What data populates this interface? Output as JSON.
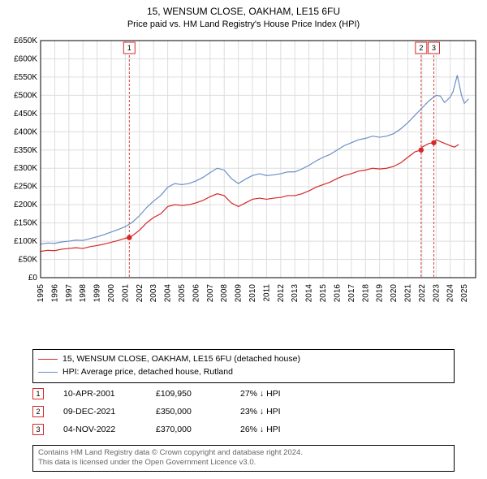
{
  "title": {
    "line1": "15, WENSUM CLOSE, OAKHAM, LE15 6FU",
    "line2": "Price paid vs. HM Land Registry's House Price Index (HPI)"
  },
  "chart": {
    "type": "line",
    "background_color": "#ffffff",
    "grid_color": "#dddddd",
    "axis_color": "#000000",
    "x_years": [
      1995,
      1996,
      1997,
      1998,
      1999,
      2000,
      2001,
      2002,
      2003,
      2004,
      2005,
      2006,
      2007,
      2008,
      2009,
      2010,
      2011,
      2012,
      2013,
      2014,
      2015,
      2016,
      2017,
      2018,
      2019,
      2020,
      2021,
      2022,
      2023,
      2024,
      2025
    ],
    "xlim": [
      1995,
      2025.8
    ],
    "ylim": [
      0,
      650000
    ],
    "ytick_step": 50000,
    "ytick_labels": [
      "£0",
      "£50K",
      "£100K",
      "£150K",
      "£200K",
      "£250K",
      "£300K",
      "£350K",
      "£400K",
      "£450K",
      "£500K",
      "£550K",
      "£600K",
      "£650K"
    ],
    "series": [
      {
        "name": "property",
        "color": "#d62728",
        "width": 1.2,
        "points": [
          [
            1995,
            72000
          ],
          [
            1995.5,
            75000
          ],
          [
            1996,
            74000
          ],
          [
            1996.5,
            78000
          ],
          [
            1997,
            80000
          ],
          [
            1997.5,
            82000
          ],
          [
            1998,
            80000
          ],
          [
            1998.5,
            85000
          ],
          [
            1999,
            88000
          ],
          [
            1999.5,
            92000
          ],
          [
            2000,
            97000
          ],
          [
            2000.5,
            102000
          ],
          [
            2001,
            108000
          ],
          [
            2001.28,
            109950
          ],
          [
            2001.5,
            115000
          ],
          [
            2002,
            130000
          ],
          [
            2002.5,
            150000
          ],
          [
            2003,
            165000
          ],
          [
            2003.5,
            175000
          ],
          [
            2004,
            195000
          ],
          [
            2004.5,
            200000
          ],
          [
            2005,
            198000
          ],
          [
            2005.5,
            200000
          ],
          [
            2006,
            205000
          ],
          [
            2006.5,
            212000
          ],
          [
            2007,
            222000
          ],
          [
            2007.5,
            230000
          ],
          [
            2008,
            225000
          ],
          [
            2008.5,
            205000
          ],
          [
            2009,
            195000
          ],
          [
            2009.5,
            205000
          ],
          [
            2010,
            215000
          ],
          [
            2010.5,
            218000
          ],
          [
            2011,
            215000
          ],
          [
            2011.5,
            218000
          ],
          [
            2012,
            220000
          ],
          [
            2012.5,
            225000
          ],
          [
            2013,
            225000
          ],
          [
            2013.5,
            230000
          ],
          [
            2014,
            238000
          ],
          [
            2014.5,
            248000
          ],
          [
            2015,
            255000
          ],
          [
            2015.5,
            262000
          ],
          [
            2016,
            272000
          ],
          [
            2016.5,
            280000
          ],
          [
            2017,
            285000
          ],
          [
            2017.5,
            292000
          ],
          [
            2018,
            295000
          ],
          [
            2018.5,
            300000
          ],
          [
            2019,
            298000
          ],
          [
            2019.5,
            300000
          ],
          [
            2020,
            305000
          ],
          [
            2020.5,
            315000
          ],
          [
            2021,
            330000
          ],
          [
            2021.5,
            345000
          ],
          [
            2021.94,
            350000
          ],
          [
            2022,
            358000
          ],
          [
            2022.5,
            368000
          ],
          [
            2022.84,
            370000
          ],
          [
            2023,
            378000
          ],
          [
            2023.5,
            370000
          ],
          [
            2024,
            362000
          ],
          [
            2024.3,
            358000
          ],
          [
            2024.6,
            365000
          ]
        ]
      },
      {
        "name": "hpi",
        "color": "#6b8ec7",
        "width": 1.2,
        "points": [
          [
            1995,
            92000
          ],
          [
            1995.5,
            95000
          ],
          [
            1996,
            94000
          ],
          [
            1996.5,
            98000
          ],
          [
            1997,
            100000
          ],
          [
            1997.5,
            103000
          ],
          [
            1998,
            102000
          ],
          [
            1998.5,
            107000
          ],
          [
            1999,
            112000
          ],
          [
            1999.5,
            118000
          ],
          [
            2000,
            125000
          ],
          [
            2000.5,
            132000
          ],
          [
            2001,
            140000
          ],
          [
            2001.5,
            152000
          ],
          [
            2002,
            170000
          ],
          [
            2002.5,
            192000
          ],
          [
            2003,
            210000
          ],
          [
            2003.5,
            225000
          ],
          [
            2004,
            248000
          ],
          [
            2004.5,
            258000
          ],
          [
            2005,
            255000
          ],
          [
            2005.5,
            258000
          ],
          [
            2006,
            265000
          ],
          [
            2006.5,
            275000
          ],
          [
            2007,
            288000
          ],
          [
            2007.5,
            300000
          ],
          [
            2008,
            295000
          ],
          [
            2008.5,
            272000
          ],
          [
            2009,
            258000
          ],
          [
            2009.5,
            270000
          ],
          [
            2010,
            280000
          ],
          [
            2010.5,
            285000
          ],
          [
            2011,
            280000
          ],
          [
            2011.5,
            282000
          ],
          [
            2012,
            285000
          ],
          [
            2012.5,
            290000
          ],
          [
            2013,
            290000
          ],
          [
            2013.5,
            298000
          ],
          [
            2014,
            308000
          ],
          [
            2014.5,
            320000
          ],
          [
            2015,
            330000
          ],
          [
            2015.5,
            338000
          ],
          [
            2016,
            350000
          ],
          [
            2016.5,
            362000
          ],
          [
            2017,
            370000
          ],
          [
            2017.5,
            378000
          ],
          [
            2018,
            382000
          ],
          [
            2018.5,
            388000
          ],
          [
            2019,
            385000
          ],
          [
            2019.5,
            388000
          ],
          [
            2020,
            395000
          ],
          [
            2020.5,
            408000
          ],
          [
            2021,
            425000
          ],
          [
            2021.5,
            445000
          ],
          [
            2022,
            465000
          ],
          [
            2022.5,
            485000
          ],
          [
            2023,
            500000
          ],
          [
            2023.3,
            498000
          ],
          [
            2023.6,
            480000
          ],
          [
            2024,
            495000
          ],
          [
            2024.2,
            510000
          ],
          [
            2024.5,
            555000
          ],
          [
            2024.8,
            500000
          ],
          [
            2025,
            478000
          ],
          [
            2025.3,
            490000
          ]
        ]
      }
    ],
    "event_markers": [
      {
        "num": "1",
        "year": 2001.28,
        "color": "#d62728"
      },
      {
        "num": "2",
        "year": 2021.94,
        "color": "#d62728"
      },
      {
        "num": "3",
        "year": 2022.84,
        "color": "#d62728"
      }
    ],
    "sale_dots": [
      {
        "year": 2001.28,
        "value": 109950,
        "color": "#d62728"
      },
      {
        "year": 2021.94,
        "value": 350000,
        "color": "#d62728"
      },
      {
        "year": 2022.84,
        "value": 370000,
        "color": "#d62728"
      }
    ]
  },
  "legend": {
    "rows": [
      {
        "color": "#d62728",
        "label": "15, WENSUM CLOSE, OAKHAM, LE15 6FU (detached house)"
      },
      {
        "color": "#6b8ec7",
        "label": "HPI: Average price, detached house, Rutland"
      }
    ]
  },
  "events": [
    {
      "num": "1",
      "color": "#d62728",
      "date": "10-APR-2001",
      "price": "£109,950",
      "diff": "27% ↓ HPI"
    },
    {
      "num": "2",
      "color": "#d62728",
      "date": "09-DEC-2021",
      "price": "£350,000",
      "diff": "23% ↓ HPI"
    },
    {
      "num": "3",
      "color": "#d62728",
      "date": "04-NOV-2022",
      "price": "£370,000",
      "diff": "26% ↓ HPI"
    }
  ],
  "footer": {
    "line1": "Contains HM Land Registry data © Crown copyright and database right 2024.",
    "line2": "This data is licensed under the Open Government Licence v3.0."
  }
}
